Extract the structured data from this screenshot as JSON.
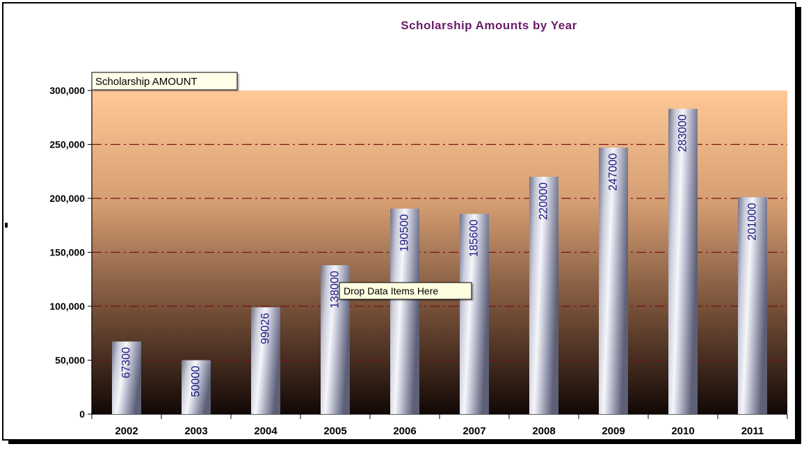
{
  "chart_data": {
    "type": "bar",
    "title": "Scholarship Amounts by Year",
    "series": [
      {
        "name": "Scholarship AMOUNT",
        "values": [
          67300,
          50000,
          99026,
          138000,
          190500,
          185600,
          220000,
          247000,
          283000,
          201000
        ]
      }
    ],
    "categories": [
      "2002",
      "2003",
      "2004",
      "2005",
      "2006",
      "2007",
      "2008",
      "2009",
      "2010",
      "2011"
    ],
    "data_labels": [
      "67300",
      "50000",
      "99026",
      "138000",
      "190500",
      "185600",
      "220000",
      "247000",
      "283000",
      "201000"
    ],
    "y_ticks": [
      "0",
      "50,000",
      "100,000",
      "150,000",
      "200,000",
      "250,000",
      "300,000"
    ],
    "ylim": [
      0,
      300000
    ],
    "y_tick_step": 50000,
    "grid": true,
    "legend": "Scholarship AMOUNT",
    "legend_placement": "top-left",
    "drop_zone_text": "Drop Data Items Here",
    "colors": {
      "title": "#6a1a6a",
      "data_label": "#1a1a80",
      "gridline": "#7a1010",
      "plot_top": "#ffc896",
      "plot_bottom": "#120806"
    }
  }
}
